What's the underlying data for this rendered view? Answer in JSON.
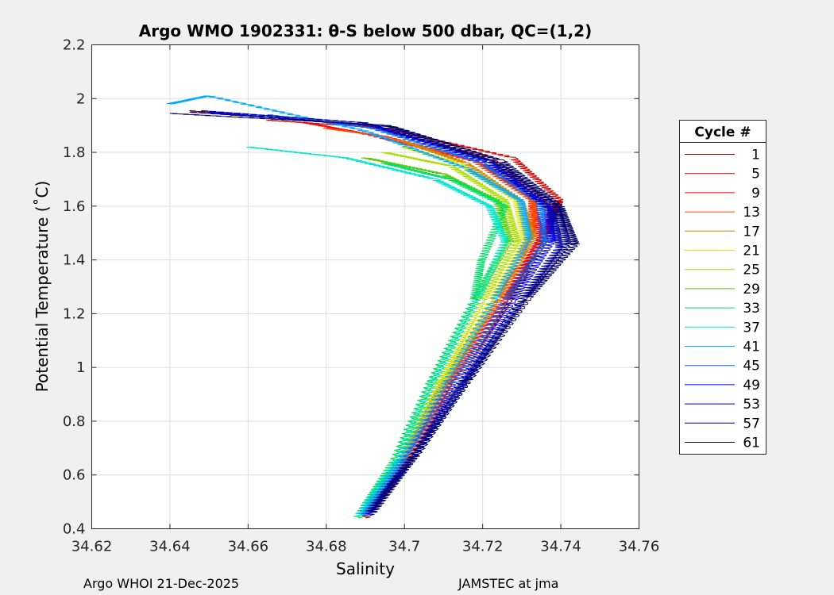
{
  "chart_data": {
    "type": "line",
    "title": "Argo WMO 1902331: θ-S below 500 dbar,  QC=(1,2)",
    "xlabel": "Salinity",
    "ylabel": "Potential Temperature (˚C)",
    "xlim": [
      34.62,
      34.76
    ],
    "ylim": [
      0.4,
      2.2
    ],
    "xticks": [
      "34.62",
      "34.64",
      "34.66",
      "34.68",
      "34.7",
      "34.72",
      "34.74",
      "34.76"
    ],
    "yticks": [
      "0.4",
      "0.6",
      "0.8",
      "1",
      "1.2",
      "1.4",
      "1.6",
      "1.8",
      "2",
      "2.2"
    ],
    "grid": true,
    "legend_title": "Cycle #",
    "legend_position": "outside-right",
    "series": [
      {
        "name": "1",
        "color": "#7f0000",
        "points": [
          [
            34.69,
            0.44
          ],
          [
            34.7,
            0.65
          ],
          [
            34.713,
            0.95
          ],
          [
            34.727,
            1.25
          ],
          [
            34.737,
            1.5
          ],
          [
            34.738,
            1.6
          ],
          [
            34.722,
            1.78
          ],
          [
            34.69,
            1.9
          ],
          [
            34.645,
            1.955
          ]
        ]
      },
      {
        "name": "5",
        "color": "#cc0000",
        "points": [
          [
            34.691,
            0.45
          ],
          [
            34.701,
            0.66
          ],
          [
            34.713,
            0.95
          ],
          [
            34.726,
            1.25
          ],
          [
            34.736,
            1.5
          ],
          [
            34.74,
            1.62
          ],
          [
            34.728,
            1.78
          ],
          [
            34.695,
            1.89
          ],
          [
            34.665,
            1.92
          ]
        ]
      },
      {
        "name": "9",
        "color": "#ff0000",
        "points": [
          [
            34.69,
            0.45
          ],
          [
            34.7,
            0.65
          ],
          [
            34.712,
            0.95
          ],
          [
            34.725,
            1.24
          ],
          [
            34.735,
            1.48
          ],
          [
            34.733,
            1.63
          ],
          [
            34.72,
            1.76
          ],
          [
            34.69,
            1.87
          ],
          [
            34.675,
            1.91
          ]
        ]
      },
      {
        "name": "13",
        "color": "#ff4500",
        "points": [
          [
            34.69,
            0.45
          ],
          [
            34.7,
            0.66
          ],
          [
            34.712,
            0.96
          ],
          [
            34.725,
            1.26
          ],
          [
            34.733,
            1.5
          ],
          [
            34.733,
            1.62
          ],
          [
            34.718,
            1.77
          ],
          [
            34.695,
            1.86
          ],
          [
            34.68,
            1.89
          ]
        ]
      },
      {
        "name": "17",
        "color": "#cc8800",
        "points": [
          [
            34.689,
            0.45
          ],
          [
            34.699,
            0.65
          ],
          [
            34.711,
            0.96
          ],
          [
            34.724,
            1.26
          ],
          [
            34.733,
            1.48
          ],
          [
            34.73,
            1.62
          ],
          [
            34.716,
            1.76
          ],
          [
            34.7,
            1.84
          ]
        ]
      },
      {
        "name": "21",
        "color": "#e6e600",
        "points": [
          [
            34.689,
            0.45
          ],
          [
            34.699,
            0.65
          ],
          [
            34.71,
            0.95
          ],
          [
            34.722,
            1.25
          ],
          [
            34.731,
            1.48
          ],
          [
            34.729,
            1.62
          ],
          [
            34.714,
            1.76
          ],
          [
            34.7,
            1.82
          ]
        ]
      },
      {
        "name": "25",
        "color": "#aadd00",
        "points": [
          [
            34.689,
            0.45
          ],
          [
            34.698,
            0.65
          ],
          [
            34.709,
            0.95
          ],
          [
            34.72,
            1.25
          ],
          [
            34.729,
            1.47
          ],
          [
            34.726,
            1.62
          ],
          [
            34.712,
            1.75
          ],
          [
            34.695,
            1.8
          ]
        ]
      },
      {
        "name": "29",
        "color": "#55cc00",
        "points": [
          [
            34.688,
            0.44
          ],
          [
            34.697,
            0.64
          ],
          [
            34.707,
            0.95
          ],
          [
            34.718,
            1.25
          ],
          [
            34.727,
            1.47
          ],
          [
            34.724,
            1.62
          ],
          [
            34.71,
            1.72
          ],
          [
            34.69,
            1.78
          ]
        ]
      },
      {
        "name": "33",
        "color": "#00dd66",
        "points": [
          [
            34.688,
            0.44
          ],
          [
            34.697,
            0.64
          ],
          [
            34.707,
            0.95
          ],
          [
            34.718,
            1.25
          ],
          [
            34.72,
            1.4
          ],
          [
            34.726,
            1.6
          ],
          [
            34.712,
            1.7
          ],
          [
            34.695,
            1.76
          ]
        ]
      },
      {
        "name": "37",
        "color": "#00e6c8",
        "points": [
          [
            34.688,
            0.44
          ],
          [
            34.698,
            0.65
          ],
          [
            34.708,
            0.96
          ],
          [
            34.719,
            1.26
          ],
          [
            34.726,
            1.47
          ],
          [
            34.722,
            1.6
          ],
          [
            34.708,
            1.7
          ],
          [
            34.685,
            1.78
          ],
          [
            34.66,
            1.82
          ]
        ]
      },
      {
        "name": "41",
        "color": "#00aaff",
        "points": [
          [
            34.689,
            0.45
          ],
          [
            34.699,
            0.65
          ],
          [
            34.711,
            0.95
          ],
          [
            34.723,
            1.25
          ],
          [
            34.732,
            1.48
          ],
          [
            34.73,
            1.62
          ],
          [
            34.716,
            1.74
          ],
          [
            34.69,
            1.88
          ],
          [
            34.65,
            2.01
          ],
          [
            34.64,
            1.98
          ]
        ]
      },
      {
        "name": "45",
        "color": "#0066ff",
        "points": [
          [
            34.69,
            0.45
          ],
          [
            34.7,
            0.65
          ],
          [
            34.713,
            0.95
          ],
          [
            34.726,
            1.25
          ],
          [
            34.736,
            1.47
          ],
          [
            34.735,
            1.61
          ],
          [
            34.72,
            1.76
          ],
          [
            34.692,
            1.89
          ],
          [
            34.665,
            1.94
          ]
        ]
      },
      {
        "name": "49",
        "color": "#0000ff",
        "points": [
          [
            34.691,
            0.45
          ],
          [
            34.702,
            0.66
          ],
          [
            34.715,
            0.95
          ],
          [
            34.728,
            1.25
          ],
          [
            34.738,
            1.47
          ],
          [
            34.737,
            1.6
          ],
          [
            34.722,
            1.76
          ],
          [
            34.692,
            1.9
          ],
          [
            34.65,
            1.95
          ]
        ]
      },
      {
        "name": "53",
        "color": "#0000aa",
        "points": [
          [
            34.691,
            0.46
          ],
          [
            34.702,
            0.66
          ],
          [
            34.716,
            0.95
          ],
          [
            34.73,
            1.25
          ],
          [
            34.74,
            1.45
          ],
          [
            34.738,
            1.58
          ],
          [
            34.722,
            1.77
          ],
          [
            34.69,
            1.91
          ],
          [
            34.648,
            1.955
          ]
        ]
      },
      {
        "name": "57",
        "color": "#000080",
        "points": [
          [
            34.691,
            0.46
          ],
          [
            34.702,
            0.66
          ],
          [
            34.716,
            0.96
          ],
          [
            34.731,
            1.26
          ],
          [
            34.742,
            1.46
          ],
          [
            34.739,
            1.6
          ],
          [
            34.724,
            1.76
          ],
          [
            34.695,
            1.9
          ],
          [
            34.645,
            1.95
          ]
        ]
      },
      {
        "name": "61",
        "color": "#000066",
        "points": [
          [
            34.692,
            0.46
          ],
          [
            34.703,
            0.67
          ],
          [
            34.717,
            0.96
          ],
          [
            34.732,
            1.26
          ],
          [
            34.744,
            1.46
          ],
          [
            34.74,
            1.6
          ],
          [
            34.725,
            1.77
          ],
          [
            34.696,
            1.9
          ],
          [
            34.64,
            1.945
          ]
        ]
      }
    ]
  },
  "footer": {
    "left": "Argo WHOI 21-Dec-2025",
    "right": "JAMSTEC at jma"
  }
}
